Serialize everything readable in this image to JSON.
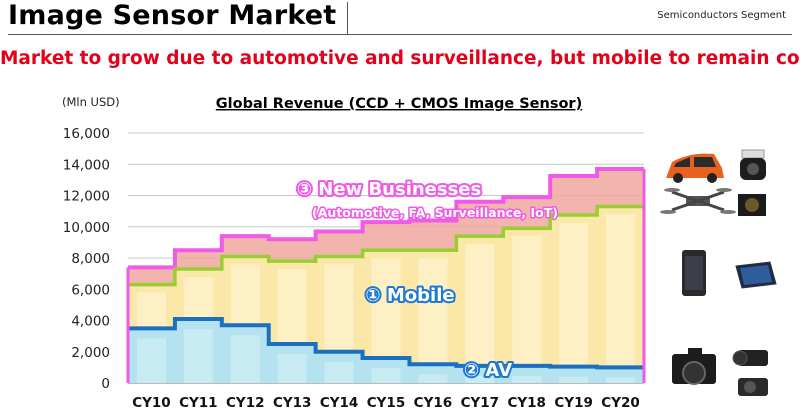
{
  "header": {
    "title": "Image Sensor Market",
    "segment": "Semiconductors Segment"
  },
  "headline": "Market to grow due to automotive and surveillance, but mobile to remain core",
  "colors": {
    "headline": "#e4001b",
    "mobile_fill": "#fbe7a8",
    "mobile_line": "#9acd32",
    "av_fill": "#b4e2ee",
    "av_line": "#1a6fc0",
    "new_fill": "#f0a8a0",
    "new_line": "#ef5ae6"
  },
  "chart_data": {
    "type": "area",
    "title": "Global Revenue (CCD + CMOS Image Sensor)",
    "ylabel": "(Mln USD)",
    "ylim": [
      0,
      16000
    ],
    "yticks": [
      "0",
      "2,000",
      "4,000",
      "6,000",
      "8,000",
      "10,000",
      "12,000",
      "14,000",
      "16,000"
    ],
    "ytick_values": [
      0,
      2000,
      4000,
      6000,
      8000,
      10000,
      12000,
      14000,
      16000
    ],
    "categories": [
      "CY10",
      "CY11",
      "CY12",
      "CY13",
      "CY14",
      "CY15",
      "CY16",
      "CY17",
      "CY18",
      "CY19",
      "CY20"
    ],
    "stacked": true,
    "series": [
      {
        "name": "AV",
        "values": [
          3500,
          4100,
          3700,
          2500,
          2000,
          1600,
          1200,
          1100,
          1100,
          1050,
          1000
        ]
      },
      {
        "name": "Mobile",
        "values": [
          2800,
          3200,
          4400,
          5300,
          6100,
          6900,
          7300,
          8300,
          8800,
          9700,
          10300
        ]
      },
      {
        "name": "New Businesses",
        "values": [
          1100,
          1200,
          1300,
          1400,
          1600,
          1800,
          1900,
          2200,
          2000,
          2500,
          2400
        ]
      }
    ],
    "annotations": [
      {
        "label": "③ New Businesses",
        "sub": "(Automotive, FA, Surveillance, IoT)"
      },
      {
        "label": "① Mobile"
      },
      {
        "label": "② AV"
      }
    ]
  },
  "images": [
    {
      "icon": "minivan-icon"
    },
    {
      "icon": "security-camera-icon"
    },
    {
      "icon": "drone-icon"
    },
    {
      "icon": "industrial-camera-icon"
    },
    {
      "icon": "smartphone-icon"
    },
    {
      "icon": "tablet-icon"
    },
    {
      "icon": "mirrorless-camera-icon"
    },
    {
      "icon": "camcorder-icon"
    },
    {
      "icon": "compact-camera-icon"
    }
  ]
}
